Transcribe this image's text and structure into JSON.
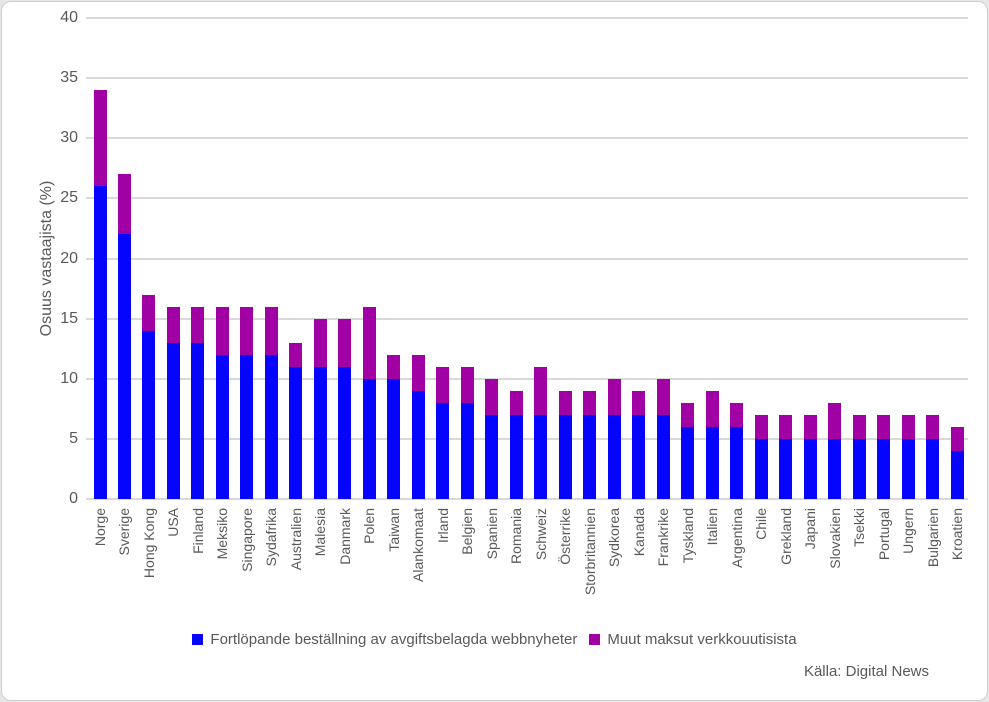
{
  "chart_data": {
    "type": "bar",
    "stacked": true,
    "title": "",
    "xlabel": "",
    "ylabel": "Osuus vastaajista (%)",
    "ylim": [
      0,
      40
    ],
    "yticks": [
      0,
      5,
      10,
      15,
      20,
      25,
      30,
      35,
      40
    ],
    "grid": true,
    "legend_position": "bottom",
    "categories": [
      "Norge",
      "Sverige",
      "Hong Kong",
      "USA",
      "Finland",
      "Meksiko",
      "Singapore",
      "Sydafrika",
      "Australien",
      "Malesia",
      "Danmark",
      "Polen",
      "Taiwan",
      "Alankomaat",
      "Irland",
      "Belgien",
      "Spanien",
      "Romania",
      "Schweiz",
      "Österrike",
      "Storbritannien",
      "Sydkorea",
      "Kanada",
      "Frankrike",
      "Tyskland",
      "Italien",
      "Argentina",
      "Chile",
      "Grekland",
      "Japani",
      "Slovakien",
      "Tsekki",
      "Portugal",
      "Ungern",
      "Bulgarien",
      "Kroatien"
    ],
    "series": [
      {
        "key": "subscription",
        "name": "Fortlöpande beställning av avgiftsbelagda webbnyheter",
        "color": "#0505FF",
        "values": [
          26,
          22,
          14,
          13,
          13,
          12,
          12,
          12,
          11,
          11,
          11,
          10,
          10,
          9,
          8,
          8,
          7,
          7,
          7,
          7,
          7,
          7,
          7,
          7,
          6,
          6,
          6,
          5,
          5,
          5,
          5,
          5,
          5,
          5,
          5,
          4
        ]
      },
      {
        "key": "other",
        "name": "Muut maksut verkkouutisista",
        "color": "#A000A4",
        "values": [
          8,
          5,
          3,
          3,
          3,
          4,
          4,
          4,
          2,
          4,
          4,
          6,
          2,
          3,
          3,
          3,
          3,
          2,
          4,
          2,
          2,
          3,
          2,
          3,
          2,
          3,
          2,
          2,
          2,
          2,
          3,
          2,
          2,
          2,
          2,
          2
        ]
      }
    ]
  },
  "source": "Källa: Digital News",
  "colors": {
    "gridline": "#D9D9D9",
    "text": "#595959",
    "border": "#CFCFCF",
    "background": "#FFFFFF"
  }
}
